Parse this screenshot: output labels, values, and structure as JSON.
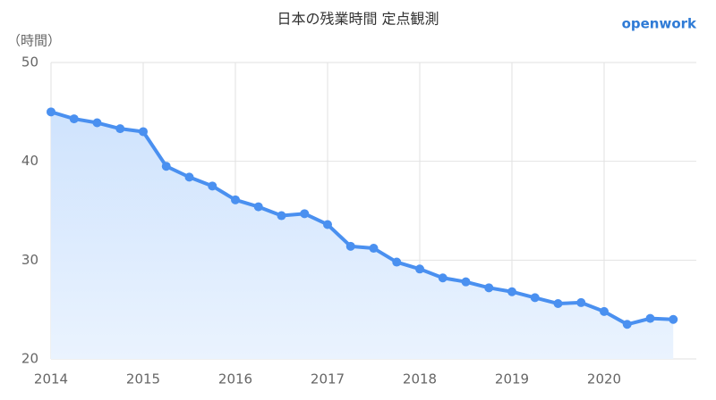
{
  "chart_data": {
    "type": "line",
    "title": "日本の残業時間 定点観測",
    "brand": "openwork",
    "y_label": "（時間）",
    "x": [
      2014,
      2014.25,
      2014.5,
      2014.75,
      2015,
      2015.25,
      2015.5,
      2015.75,
      2016,
      2016.25,
      2016.5,
      2016.75,
      2017,
      2017.25,
      2017.5,
      2017.75,
      2018,
      2018.25,
      2018.5,
      2018.75,
      2019,
      2019.25,
      2019.5,
      2019.75,
      2020,
      2020.25,
      2020.5,
      2020.75
    ],
    "series": [
      {
        "name": "残業時間",
        "color": "#4a90f0",
        "values": [
          45.0,
          44.3,
          43.9,
          43.3,
          43.0,
          39.5,
          38.4,
          37.5,
          36.1,
          35.4,
          34.5,
          34.7,
          33.6,
          31.4,
          31.2,
          29.8,
          29.1,
          28.2,
          27.8,
          27.2,
          26.8,
          26.2,
          25.6,
          25.7,
          24.8,
          23.5,
          24.1,
          24.0
        ]
      }
    ],
    "xlim": [
      2014,
      2021
    ],
    "xticks": [
      2014,
      2015,
      2016,
      2017,
      2018,
      2019,
      2020
    ],
    "ylim": [
      20,
      50
    ],
    "yticks": [
      20,
      30,
      40,
      50
    ],
    "grid": true
  }
}
